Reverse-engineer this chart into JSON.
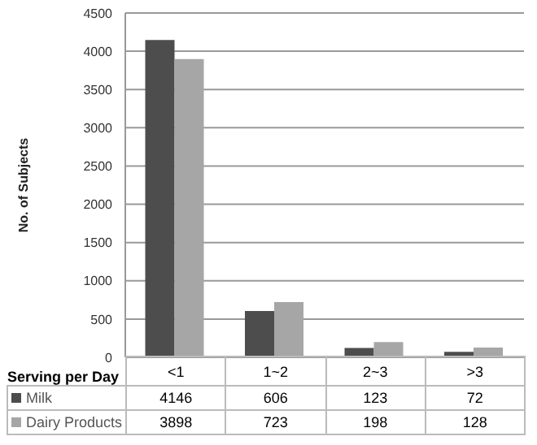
{
  "chart_data": {
    "type": "bar",
    "xlabel": "Serving per Day",
    "ylabel": "No. of Subjects",
    "categories": [
      "<1",
      "1~2",
      "2~3",
      ">3"
    ],
    "series": [
      {
        "name": "Milk",
        "color": "#4d4d4d",
        "values": [
          4146,
          606,
          123,
          72
        ]
      },
      {
        "name": "Dairy Products",
        "color": "#a6a6a6",
        "values": [
          3898,
          723,
          198,
          128
        ]
      }
    ],
    "ylim": [
      0,
      4500
    ],
    "yticks": [
      0,
      500,
      1000,
      1500,
      2000,
      2500,
      3000,
      3500,
      4000,
      4500
    ],
    "grid": "y",
    "legend": "bottom",
    "data_labels": true
  }
}
